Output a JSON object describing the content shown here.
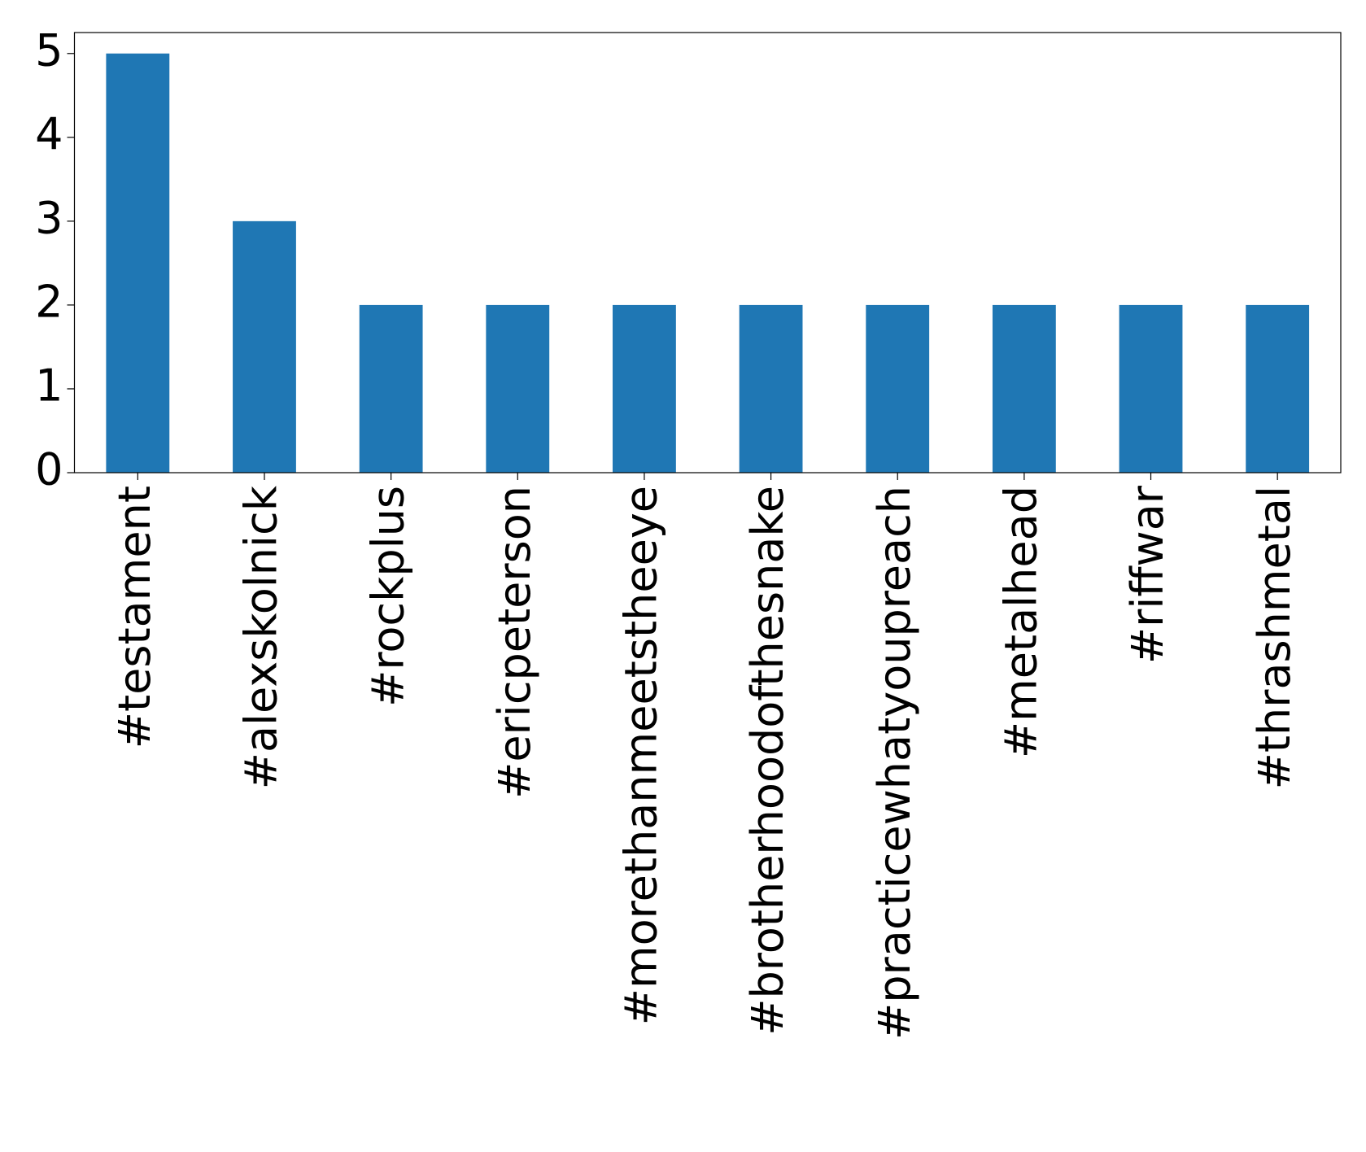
{
  "chart_data": {
    "type": "bar",
    "categories": [
      "#testament",
      "#alexskolnick",
      "#rockplus",
      "#ericpeterson",
      "#morethanmeetstheeye",
      "#brotherhoodofthesnake",
      "#practicewhatyoupreach",
      "#metalhead",
      "#riffwar",
      "#thrashmetal"
    ],
    "values": [
      5,
      3,
      2,
      2,
      2,
      2,
      2,
      2,
      2,
      2
    ],
    "color": "#1f77b4",
    "ylim": [
      0,
      5.25
    ],
    "yticks": [
      0,
      1,
      2,
      3,
      4,
      5
    ],
    "grid": false
  }
}
